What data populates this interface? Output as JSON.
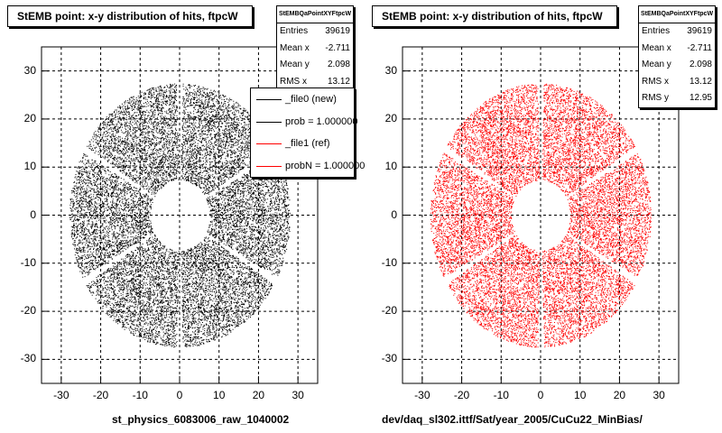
{
  "chart_data": [
    {
      "type": "scatter",
      "title": "StEMB point: x-y distribution of hits, ftpcW",
      "xlabel": "",
      "ylabel": "",
      "xlim": [
        -35,
        35
      ],
      "ylim": [
        -35,
        35
      ],
      "x_ticks": [
        -30,
        -20,
        -10,
        0,
        10,
        20,
        30
      ],
      "y_ticks": [
        -30,
        -20,
        -10,
        0,
        10,
        20,
        30
      ],
      "grid": true,
      "color": "#000000",
      "distribution": {
        "inner_radius": 7.5,
        "outer_radius": 28,
        "center_x": 0,
        "center_y": 0,
        "gaps_deg": [
          30,
          90,
          150,
          210,
          270,
          330
        ]
      },
      "stats": {
        "name": "StEMBQaPointXYFtpcW",
        "entries": {
          "label": "Entries",
          "value": "39619"
        },
        "mean_x": {
          "label": "Mean x",
          "value": "-2.711"
        },
        "mean_y": {
          "label": "Mean y",
          "value": "2.098"
        },
        "rms_x": {
          "label": "RMS x",
          "value": "13.12"
        }
      },
      "legend": [
        {
          "text": "_file0 (new)",
          "color": "#000000"
        },
        {
          "text": "prob = 1.000000",
          "color": "#000000"
        },
        {
          "text": "_file1 (ref)",
          "color": "#ff0000"
        },
        {
          "text": "probN = 1.000000",
          "color": "#ff0000"
        }
      ],
      "footer": "st_physics_6083006_raw_1040002"
    },
    {
      "type": "scatter",
      "title": "StEMB point: x-y distribution of hits, ftpcW",
      "xlabel": "",
      "ylabel": "",
      "xlim": [
        -35,
        35
      ],
      "ylim": [
        -35,
        35
      ],
      "x_ticks": [
        -30,
        -20,
        -10,
        0,
        10,
        20,
        30
      ],
      "y_ticks": [
        -30,
        -20,
        -10,
        0,
        10,
        20,
        30
      ],
      "grid": true,
      "color": "#ff0000",
      "distribution": {
        "inner_radius": 7.5,
        "outer_radius": 28,
        "center_x": 0,
        "center_y": 0,
        "gaps_deg": [
          30,
          90,
          150,
          210,
          270,
          330
        ]
      },
      "stats": {
        "name": "StEMBQaPointXYFtpcW",
        "entries": {
          "label": "Entries",
          "value": "39619"
        },
        "mean_x": {
          "label": "Mean x",
          "value": "-2.711"
        },
        "mean_y": {
          "label": "Mean y",
          "value": "2.098"
        },
        "rms_x": {
          "label": "RMS x",
          "value": "13.12"
        },
        "rms_y": {
          "label": "RMS y",
          "value": "12.95"
        }
      },
      "footer": "dev/daq_sl302.ittf/Sat/year_2005/CuCu22_MinBias/"
    }
  ]
}
